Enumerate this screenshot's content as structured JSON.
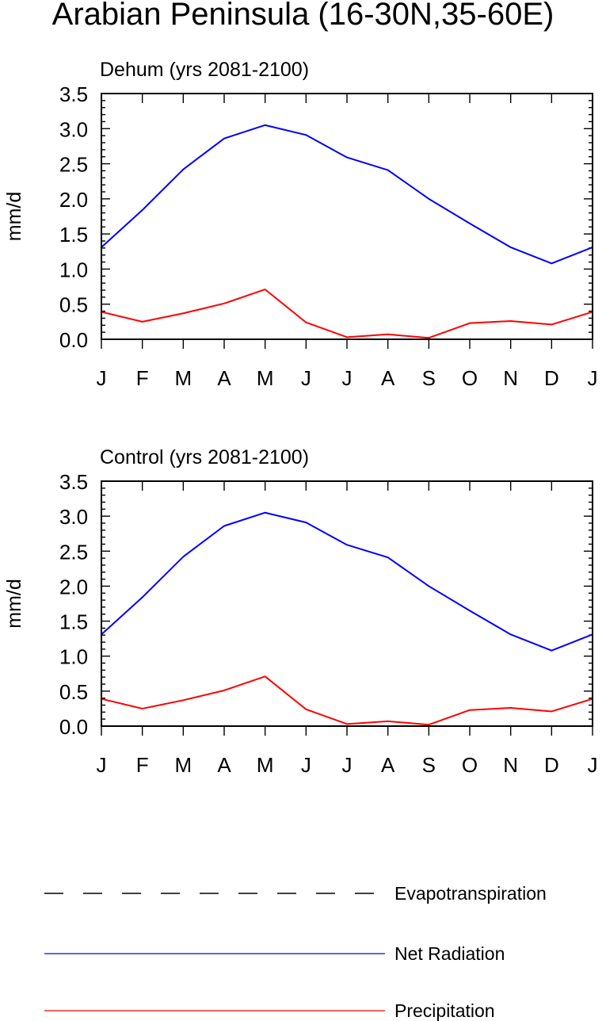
{
  "title": "Arabian Peninsula (16-30N,35-60E)",
  "chart_data": [
    {
      "type": "line",
      "title": "Dehum (yrs 2081-2100)",
      "ylabel": "mm/d",
      "xlabel": "",
      "categories": [
        "J",
        "F",
        "M",
        "A",
        "M",
        "J",
        "J",
        "A",
        "S",
        "O",
        "N",
        "D",
        "J"
      ],
      "ylim": [
        0,
        3.5
      ],
      "yticks": [
        "0.0",
        "0.5",
        "1.0",
        "1.5",
        "2.0",
        "2.5",
        "3.0",
        "3.5"
      ],
      "series": [
        {
          "name": "Net Radiation",
          "color": "#0000ff",
          "values": [
            1.31,
            1.84,
            2.42,
            2.86,
            3.05,
            2.91,
            2.59,
            2.41,
            2.0,
            1.65,
            1.31,
            1.08,
            1.31
          ]
        },
        {
          "name": "Precipitation",
          "color": "#ff0000",
          "values": [
            0.39,
            0.25,
            0.37,
            0.51,
            0.71,
            0.24,
            0.03,
            0.07,
            0.02,
            0.23,
            0.26,
            0.21,
            0.39
          ]
        }
      ]
    },
    {
      "type": "line",
      "title": "Control (yrs 2081-2100)",
      "ylabel": "mm/d",
      "xlabel": "",
      "categories": [
        "J",
        "F",
        "M",
        "A",
        "M",
        "J",
        "J",
        "A",
        "S",
        "O",
        "N",
        "D",
        "J"
      ],
      "ylim": [
        0,
        3.5
      ],
      "yticks": [
        "0.0",
        "0.5",
        "1.0",
        "1.5",
        "2.0",
        "2.5",
        "3.0",
        "3.5"
      ],
      "series": [
        {
          "name": "Net Radiation",
          "color": "#0000ff",
          "values": [
            1.31,
            1.84,
            2.42,
            2.86,
            3.05,
            2.91,
            2.59,
            2.41,
            2.0,
            1.65,
            1.31,
            1.08,
            1.31
          ]
        },
        {
          "name": "Precipitation",
          "color": "#ff0000",
          "values": [
            0.39,
            0.25,
            0.37,
            0.51,
            0.71,
            0.24,
            0.03,
            0.07,
            0.02,
            0.23,
            0.26,
            0.21,
            0.39
          ]
        }
      ]
    }
  ],
  "legend": [
    {
      "name": "Evapotranspiration",
      "color": "#000000",
      "style": "dashed"
    },
    {
      "name": "Net Radiation",
      "color": "#0000ff",
      "style": "solid"
    },
    {
      "name": "Precipitation",
      "color": "#ff0000",
      "style": "solid"
    }
  ]
}
